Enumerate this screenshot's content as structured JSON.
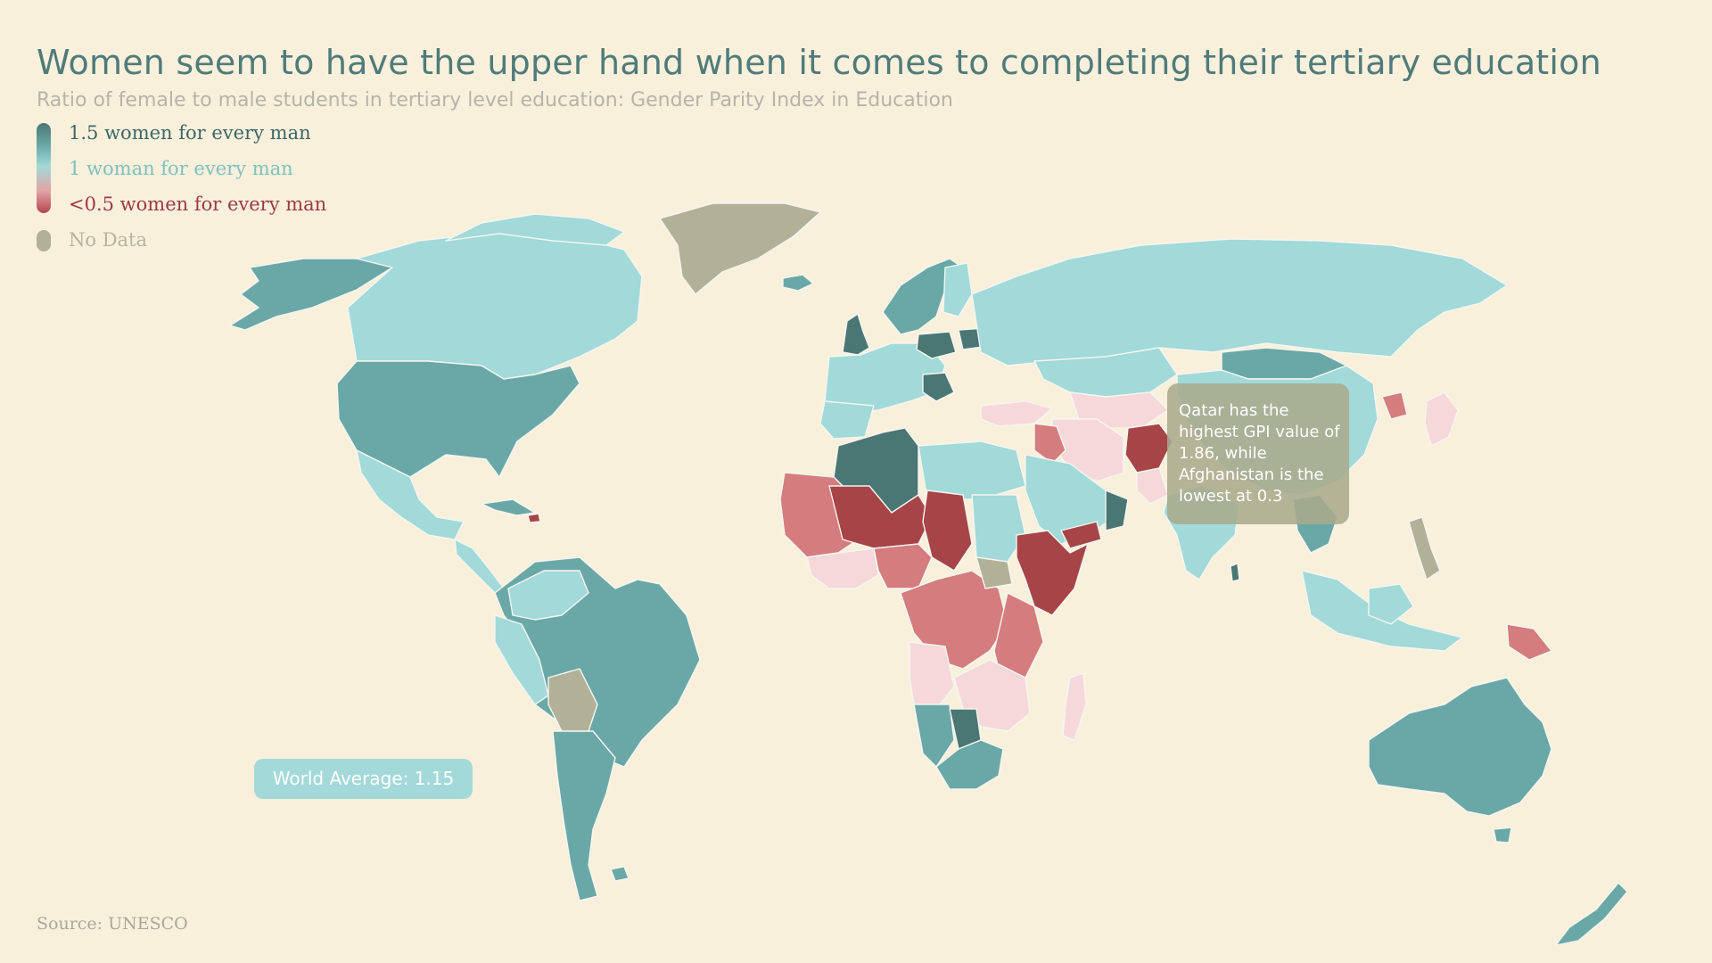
{
  "title": "Women seem to have the upper hand when it comes to completing their tertiary education",
  "subtitle": "Ratio of female to male students in tertiary level education: Gender Parity Index in Education",
  "legend": {
    "high": "1.5 women for every man",
    "mid": "1 woman for every man",
    "low": "<0.5 women for every man",
    "no_data": "No Data"
  },
  "colors": {
    "very_high": "#4a7674",
    "high": "#6aa8a7",
    "mid": "#a2d9d9",
    "mid_low": "#f7d8da",
    "low": "#d47c7e",
    "very_low": "#a74448",
    "no_data": "#b0b196",
    "background": "#f9f0dc"
  },
  "world_average_label": "World Average: 1.15",
  "callout_text": "Qatar has the highest GPI value of 1.86, while Afghanistan is the lowest at 0.3",
  "source": "Source: UNESCO"
}
